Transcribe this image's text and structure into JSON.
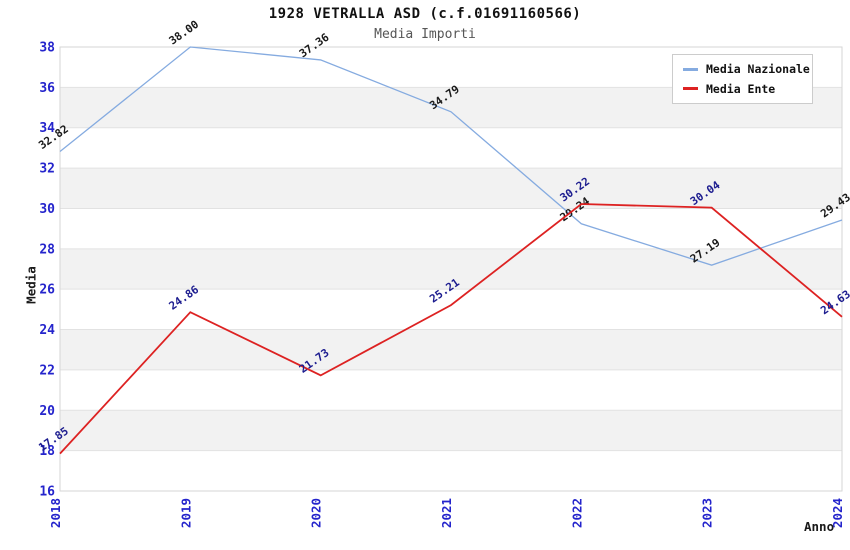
{
  "title": "1928 VETRALLA ASD (c.f.01691160566)",
  "subtitle": "Media Importi",
  "chart_data": {
    "type": "line",
    "x": [
      "2018",
      "2019",
      "2020",
      "2021",
      "2022",
      "2023",
      "2024"
    ],
    "series": [
      {
        "name": "Media Nazionale",
        "color": "#85abe0",
        "label_color": "#1a1a1a",
        "values": [
          32.82,
          38.0,
          37.36,
          34.79,
          29.24,
          27.19,
          29.43
        ]
      },
      {
        "name": "Media Ente",
        "color": "#dd2222",
        "label_color": "#1c1c8f",
        "values": [
          17.85,
          24.86,
          21.73,
          25.21,
          30.22,
          30.04,
          24.63
        ]
      }
    ],
    "xlabel": "Anno",
    "ylabel": "Media",
    "ylim": [
      16,
      38
    ],
    "yticks": [
      16,
      18,
      20,
      22,
      24,
      26,
      28,
      30,
      32,
      34,
      36,
      38
    ],
    "grid": "horizontal-bands",
    "legend_position": "top-right",
    "point_label_decimals": 2
  },
  "colors": {
    "axis_tick_label": "#2424cc",
    "band_fill": "#f2f2f2",
    "gridline": "#e2e2e2",
    "plot_border": "#d6d6d6",
    "background": "#ffffff"
  }
}
